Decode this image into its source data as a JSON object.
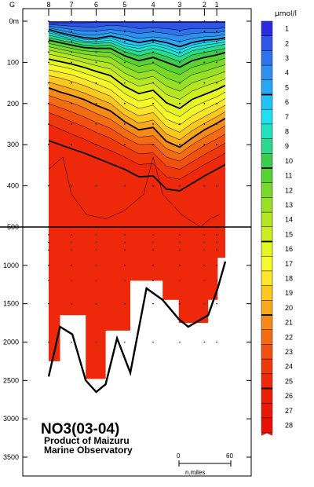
{
  "chart_data": {
    "type": "contour-section",
    "title": "NO3(03-04)",
    "producer": [
      "Product of Maizuru",
      "Marine Observatory"
    ],
    "colorbar": {
      "unit": "μmol/l",
      "levels": [
        1,
        2,
        3,
        4,
        5,
        6,
        7,
        8,
        9,
        10,
        11,
        12,
        13,
        14,
        15,
        16,
        17,
        18,
        19,
        20,
        21,
        22,
        23,
        24,
        25,
        26,
        27,
        28
      ],
      "colors": [
        "#2a2ae0",
        "#2e55e6",
        "#2f72ee",
        "#3090f0",
        "#28a8f4",
        "#22c4f6",
        "#1ee0f2",
        "#22e2c4",
        "#2cd88e",
        "#3ccc4c",
        "#58d232",
        "#7ad82a",
        "#98e026",
        "#b4e624",
        "#cfee22",
        "#e6f622",
        "#f7fa2a",
        "#fde52a",
        "#fbc820",
        "#f8a81c",
        "#f68a18",
        "#f36c14",
        "#f15010",
        "#ef380c",
        "#ee280a",
        "#ec1e08",
        "#ea1606",
        "#e81004"
      ],
      "bold_levels": [
        5,
        10,
        15,
        20,
        25
      ]
    },
    "station_labels": [
      "G",
      "8",
      "7",
      "6",
      "5",
      "4",
      "3",
      "2",
      "1"
    ],
    "y_axis_upper": {
      "ticks": [
        "0m",
        "100",
        "200",
        "300",
        "400",
        "500"
      ],
      "range": [
        0,
        500
      ]
    },
    "y_axis_lower": {
      "ticks": [
        "1000",
        "1500",
        "2000",
        "2500",
        "3000",
        "3500"
      ],
      "range": [
        500,
        3500
      ]
    },
    "scale_bar": {
      "ticks": [
        "0",
        "60"
      ],
      "label": "n.miles"
    },
    "bottom_profile": {
      "x_nmi": [
        0,
        12,
        25,
        39,
        50,
        60,
        72,
        86,
        103,
        120,
        137,
        147,
        168,
        178,
        186
      ],
      "depth_m": [
        2450,
        1800,
        1900,
        2500,
        2650,
        2550,
        1950,
        2400,
        1300,
        1450,
        1700,
        1800,
        1650,
        1300,
        950
      ]
    },
    "stations": [
      {
        "name": "8",
        "x_nmi": 0
      },
      {
        "name": "7",
        "x_nmi": 24
      },
      {
        "name": "6",
        "x_nmi": 50
      },
      {
        "name": "5",
        "x_nmi": 80
      },
      {
        "name": "4",
        "x_nmi": 110
      },
      {
        "name": "3",
        "x_nmi": 138
      },
      {
        "name": "2",
        "x_nmi": 164
      },
      {
        "name": "1",
        "x_nmi": 177
      }
    ]
  }
}
